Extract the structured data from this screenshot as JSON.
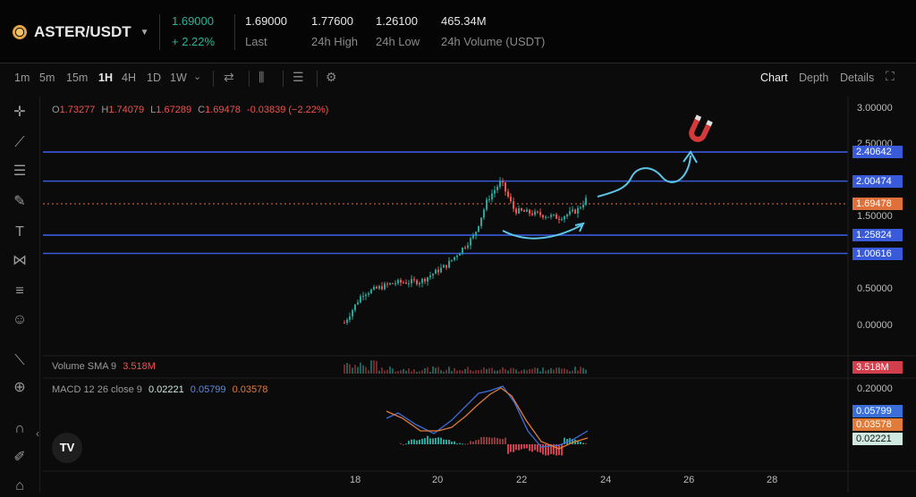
{
  "header": {
    "pair": "ASTER/USDT",
    "change_price": "1.69000",
    "change_pct": "+ 2.22%",
    "stats": [
      {
        "value": "1.69000",
        "label": "Last"
      },
      {
        "value": "1.77600",
        "label": "24h High"
      },
      {
        "value": "1.26100",
        "label": "24h Low"
      },
      {
        "value": "465.34M",
        "label": "24h Volume (USDT)"
      }
    ]
  },
  "toolbar": {
    "intervals": [
      "1m",
      "5m",
      "15m",
      "1H",
      "4H",
      "1D",
      "1W"
    ],
    "active_interval": "1H",
    "tabs": [
      "Chart",
      "Depth",
      "Details"
    ],
    "active_tab": "Chart"
  },
  "ohlc": {
    "o_label": "O",
    "o": "1.73277",
    "h_label": "H",
    "h": "1.74079",
    "l_label": "L",
    "l": "1.67289",
    "c_label": "C",
    "c": "1.69478",
    "change": "-0.03839 (−2.22%)"
  },
  "volume": {
    "label": "Volume SMA 9",
    "value": "3.518M"
  },
  "macd": {
    "label": "MACD 12 26 close 9",
    "v1": "0.02221",
    "v2": "0.05799",
    "v3": "0.03578"
  },
  "price_scale": [
    "3.00000",
    "2.50000",
    "2.00000",
    "1.50000",
    "1.00000",
    "0.50000",
    "0.00000"
  ],
  "price_badges": [
    {
      "value": "2.40642",
      "color": "#3a5bd9"
    },
    {
      "value": "2.00474",
      "color": "#3a5bd9"
    },
    {
      "value": "1.69478",
      "color": "#e0703a"
    },
    {
      "value": "1.25824",
      "color": "#3a5bd9"
    },
    {
      "value": "1.00616",
      "color": "#3a5bd9"
    }
  ],
  "macd_scale": [
    "0.20000"
  ],
  "macd_badges": [
    {
      "value": "0.05799",
      "color": "#3a6fd9"
    },
    {
      "value": "0.03578",
      "color": "#e07b3a"
    },
    {
      "value": "0.02221",
      "color": "#cfe8e0"
    }
  ],
  "volume_badge": {
    "value": "3.518M",
    "color": "#d23f4c"
  },
  "x_axis": [
    "18",
    "20",
    "22",
    "24",
    "26",
    "28"
  ],
  "horizontal_levels": [
    2.40642,
    2.00474,
    1.25824,
    1.00616
  ],
  "colors": {
    "up": "#26a69a",
    "down": "#ef5350",
    "level": "#3a5bd9",
    "arrow": "#5bc6e8"
  },
  "left_tools": [
    "crosshair-icon",
    "trendline-icon",
    "fib-icon",
    "brush-icon",
    "text-icon",
    "pattern-icon",
    "measure-icon",
    "emoji-icon",
    "ruler-icon",
    "zoom-icon",
    "magnet-icon",
    "pencil-lock-icon",
    "lock-icon"
  ]
}
